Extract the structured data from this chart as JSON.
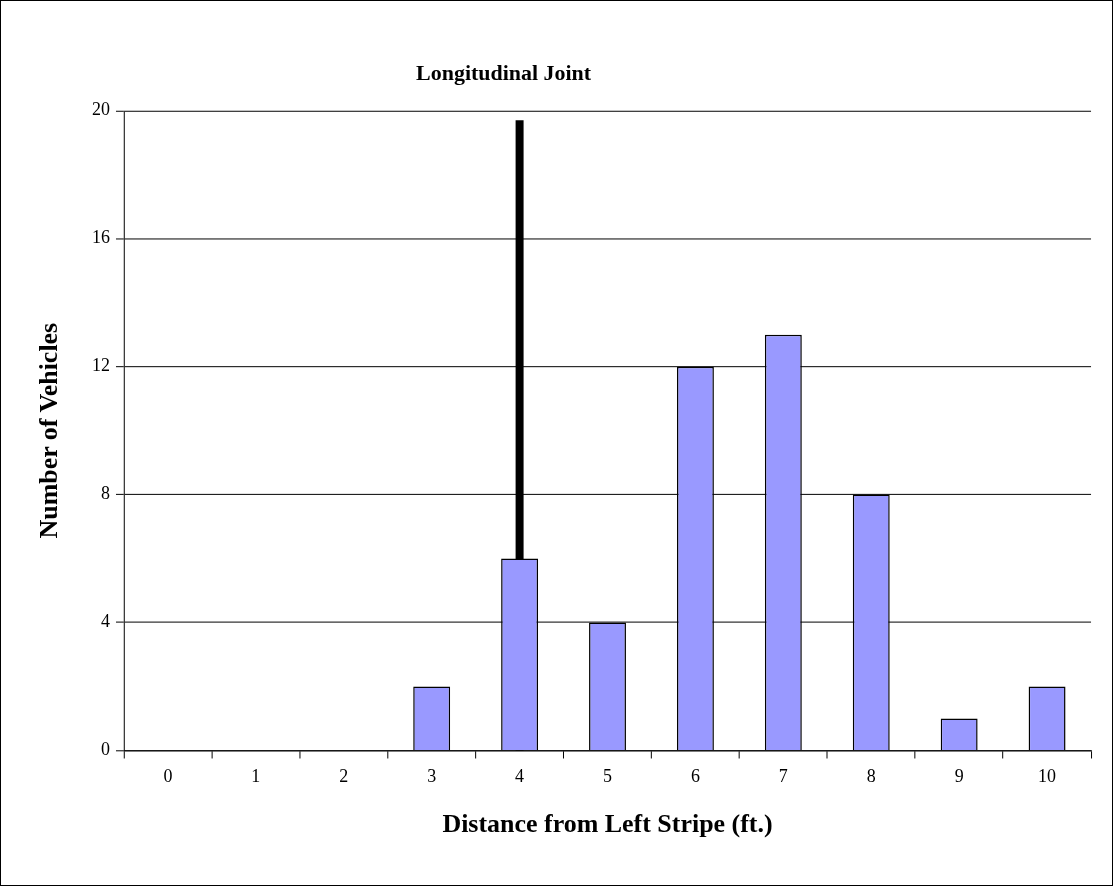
{
  "chart_data": {
    "type": "bar",
    "xlabel": "Distance from Left Stripe (ft.)",
    "ylabel": "Number of Vehicles",
    "categories": [
      "0",
      "1",
      "2",
      "3",
      "4",
      "5",
      "6",
      "7",
      "8",
      "9",
      "10"
    ],
    "values": [
      0,
      0,
      0,
      2,
      6,
      4,
      12,
      13,
      8,
      1,
      2
    ],
    "color": "#9999ff",
    "ylim": [
      0,
      20
    ],
    "yticks": [
      0,
      4,
      8,
      12,
      16,
      20
    ],
    "grid": "y",
    "legend": false,
    "ref_lines": [
      {
        "axis": "x",
        "value": "4",
        "label": "Longitudinal Joint",
        "color": "#000000"
      }
    ]
  }
}
